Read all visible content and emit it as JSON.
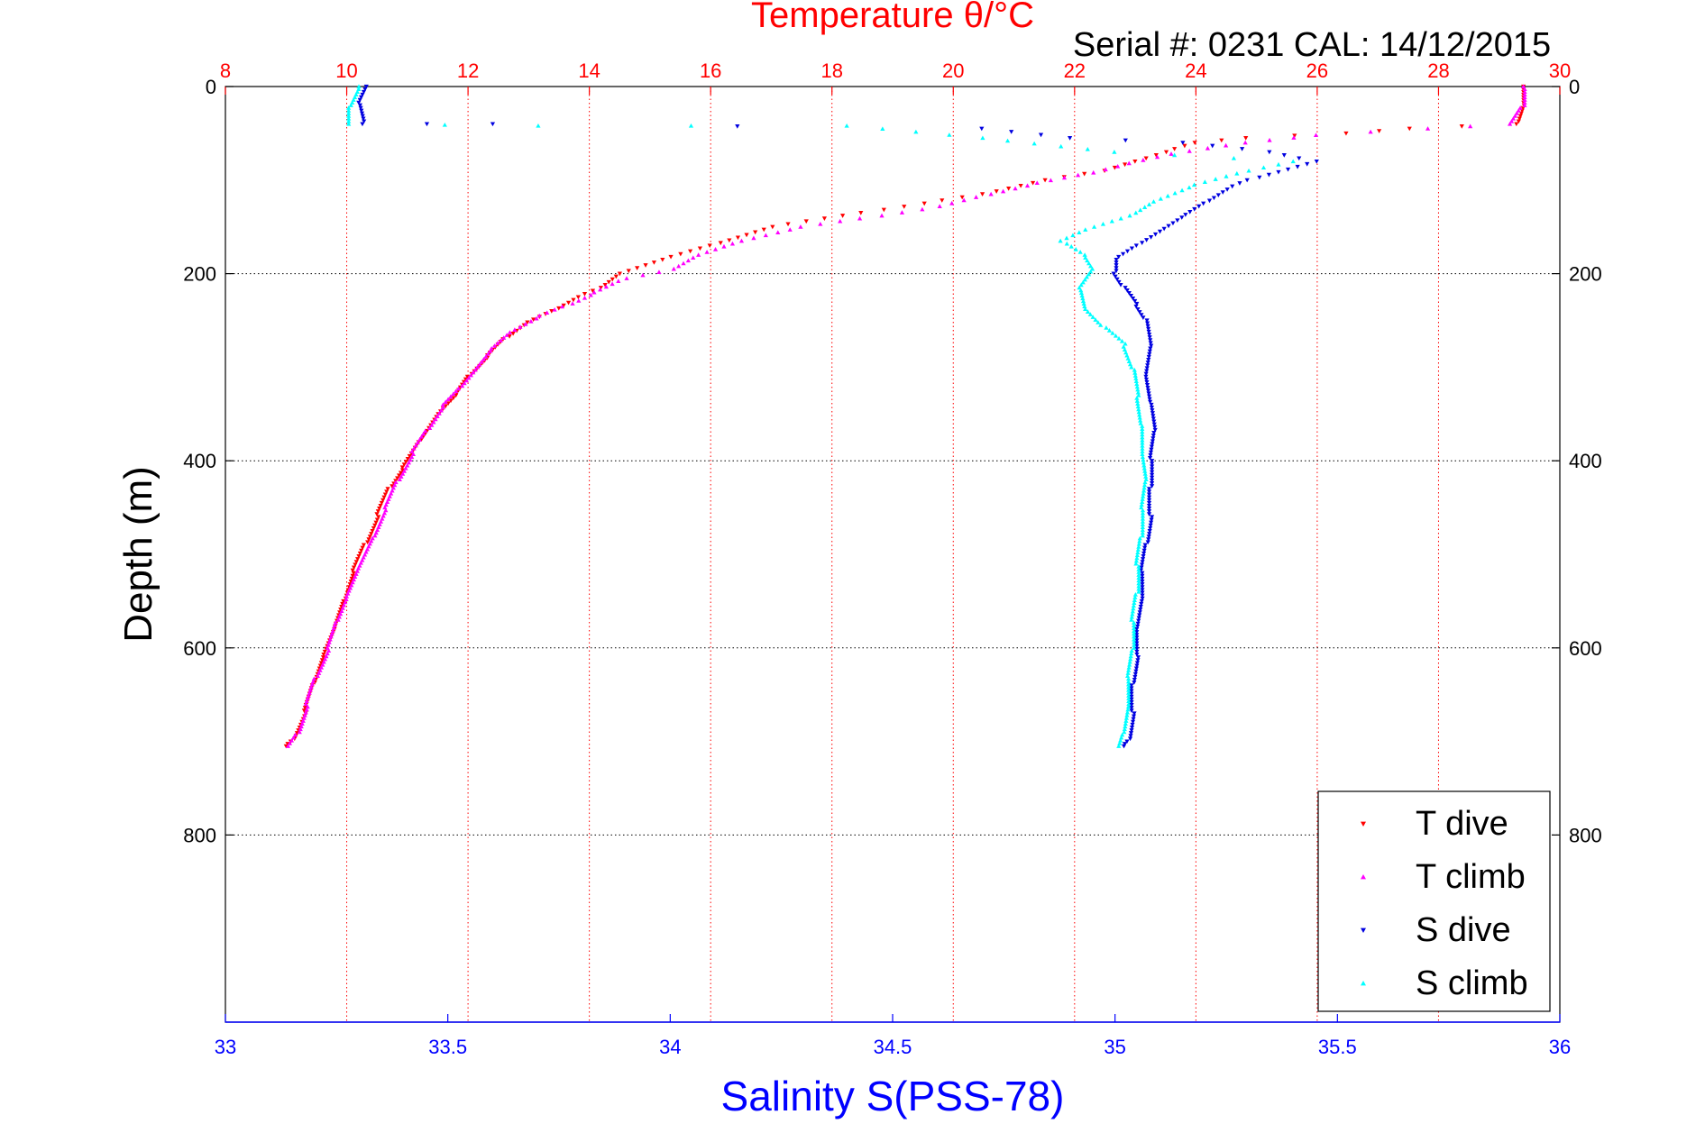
{
  "chart_data": {
    "type": "scatter",
    "title": "Temperature θ/°C",
    "subtitle": "Serial #: 0231  CAL: 14/12/2015",
    "xlabel": "Salinity S(PSS-78)",
    "ylabel": "Depth (m)",
    "colors": {
      "temperature_axis": "#ff0000",
      "salinity_axis": "#0000ff",
      "t_dive": "#ff0000",
      "t_climb": "#ff00ff",
      "s_dive": "#0000e0",
      "s_climb": "#00ffff"
    },
    "axes": {
      "x_bottom": {
        "label": "Salinity S(PSS-78)",
        "range": [
          33,
          36
        ],
        "ticks": [
          "33",
          "33.5",
          "34",
          "34.5",
          "35",
          "35.5",
          "36"
        ]
      },
      "x_top": {
        "label": "Temperature θ/°C",
        "range": [
          8,
          30
        ],
        "ticks": [
          "8",
          "10",
          "12",
          "14",
          "16",
          "18",
          "20",
          "22",
          "24",
          "26",
          "28",
          "30"
        ]
      },
      "y": {
        "label": "Depth (m)",
        "range": [
          0,
          1000
        ],
        "inverted": true,
        "ticks": [
          "0",
          "200",
          "400",
          "600",
          "800"
        ]
      }
    },
    "grid": true,
    "legend_position": "bottom-right",
    "series": [
      {
        "name": "T dive",
        "axis": "temperature",
        "marker": "triangle-down",
        "points": [
          [
            29.4,
            0
          ],
          [
            29.4,
            20
          ],
          [
            29.3,
            40
          ],
          [
            27.5,
            45
          ],
          [
            26.5,
            50
          ],
          [
            24.8,
            55
          ],
          [
            24.0,
            60
          ],
          [
            23.5,
            70
          ],
          [
            23.0,
            80
          ],
          [
            22.5,
            90
          ],
          [
            21.5,
            100
          ],
          [
            20.5,
            115
          ],
          [
            19.5,
            125
          ],
          [
            18.5,
            135
          ],
          [
            17.0,
            150
          ],
          [
            16.0,
            170
          ],
          [
            15.2,
            185
          ],
          [
            14.5,
            200
          ],
          [
            14.2,
            215
          ],
          [
            13.8,
            225
          ],
          [
            13.4,
            240
          ],
          [
            12.9,
            255
          ],
          [
            12.6,
            270
          ],
          [
            12.3,
            290
          ],
          [
            12.0,
            310
          ],
          [
            11.8,
            330
          ],
          [
            11.5,
            350
          ],
          [
            11.2,
            380
          ],
          [
            10.9,
            410
          ],
          [
            10.7,
            430
          ],
          [
            10.5,
            460
          ],
          [
            10.3,
            490
          ],
          [
            10.1,
            520
          ],
          [
            9.95,
            550
          ],
          [
            9.8,
            580
          ],
          [
            9.6,
            610
          ],
          [
            9.45,
            640
          ],
          [
            9.3,
            670
          ],
          [
            9.1,
            700
          ],
          [
            9.0,
            705
          ]
        ]
      },
      {
        "name": "T climb",
        "axis": "temperature",
        "marker": "triangle-up",
        "points": [
          [
            9.05,
            705
          ],
          [
            9.2,
            690
          ],
          [
            9.35,
            660
          ],
          [
            9.5,
            630
          ],
          [
            9.7,
            600
          ],
          [
            9.85,
            570
          ],
          [
            10.0,
            545
          ],
          [
            10.2,
            515
          ],
          [
            10.45,
            480
          ],
          [
            10.65,
            450
          ],
          [
            10.85,
            420
          ],
          [
            11.1,
            390
          ],
          [
            11.35,
            365
          ],
          [
            11.6,
            340
          ],
          [
            11.9,
            320
          ],
          [
            12.15,
            300
          ],
          [
            12.4,
            280
          ],
          [
            12.75,
            260
          ],
          [
            13.2,
            245
          ],
          [
            13.7,
            232
          ],
          [
            14.1,
            220
          ],
          [
            14.6,
            205
          ],
          [
            15.4,
            195
          ],
          [
            15.8,
            180
          ],
          [
            16.5,
            165
          ],
          [
            17.5,
            150
          ],
          [
            18.8,
            138
          ],
          [
            19.8,
            128
          ],
          [
            20.6,
            115
          ],
          [
            21.4,
            103
          ],
          [
            22.3,
            92
          ],
          [
            22.9,
            82
          ],
          [
            23.6,
            72
          ],
          [
            24.8,
            60
          ],
          [
            26.0,
            52
          ],
          [
            27.8,
            45
          ],
          [
            29.2,
            40
          ],
          [
            29.4,
            20
          ],
          [
            29.4,
            0
          ]
        ]
      },
      {
        "name": "S dive",
        "axis": "salinity",
        "marker": "triangle-down",
        "points": [
          [
            33.32,
            0
          ],
          [
            33.3,
            20
          ],
          [
            33.31,
            40
          ],
          [
            33.6,
            40
          ],
          [
            34.7,
            45
          ],
          [
            34.9,
            55
          ],
          [
            35.15,
            60
          ],
          [
            35.35,
            70
          ],
          [
            35.45,
            80
          ],
          [
            35.3,
            100
          ],
          [
            35.25,
            110
          ],
          [
            35.2,
            125
          ],
          [
            35.15,
            140
          ],
          [
            35.1,
            155
          ],
          [
            35.05,
            170
          ],
          [
            35.0,
            185
          ],
          [
            35.0,
            200
          ],
          [
            35.02,
            215
          ],
          [
            35.05,
            235
          ],
          [
            35.07,
            250
          ],
          [
            35.08,
            280
          ],
          [
            35.07,
            310
          ],
          [
            35.08,
            340
          ],
          [
            35.09,
            370
          ],
          [
            35.08,
            400
          ],
          [
            35.08,
            430
          ],
          [
            35.08,
            460
          ],
          [
            35.07,
            490
          ],
          [
            35.06,
            520
          ],
          [
            35.06,
            550
          ],
          [
            35.05,
            580
          ],
          [
            35.05,
            610
          ],
          [
            35.04,
            640
          ],
          [
            35.04,
            670
          ],
          [
            35.03,
            700
          ],
          [
            35.02,
            705
          ]
        ]
      },
      {
        "name": "S climb",
        "axis": "salinity",
        "marker": "triangle-up",
        "points": [
          [
            35.01,
            705
          ],
          [
            35.02,
            690
          ],
          [
            35.03,
            660
          ],
          [
            35.03,
            630
          ],
          [
            35.04,
            600
          ],
          [
            35.04,
            570
          ],
          [
            35.05,
            540
          ],
          [
            35.05,
            510
          ],
          [
            35.06,
            480
          ],
          [
            35.06,
            450
          ],
          [
            35.07,
            420
          ],
          [
            35.06,
            390
          ],
          [
            35.06,
            360
          ],
          [
            35.05,
            330
          ],
          [
            35.04,
            300
          ],
          [
            35.02,
            275
          ],
          [
            34.97,
            255
          ],
          [
            34.93,
            235
          ],
          [
            34.92,
            215
          ],
          [
            34.95,
            195
          ],
          [
            34.93,
            180
          ],
          [
            34.88,
            165
          ],
          [
            34.95,
            150
          ],
          [
            35.05,
            135
          ],
          [
            35.1,
            120
          ],
          [
            35.18,
            105
          ],
          [
            35.3,
            90
          ],
          [
            35.4,
            80
          ],
          [
            35.0,
            70
          ],
          [
            34.7,
            55
          ],
          [
            34.4,
            42
          ],
          [
            33.7,
            42
          ],
          [
            33.28,
            40
          ],
          [
            33.28,
            20
          ],
          [
            33.3,
            0
          ]
        ]
      }
    ]
  }
}
